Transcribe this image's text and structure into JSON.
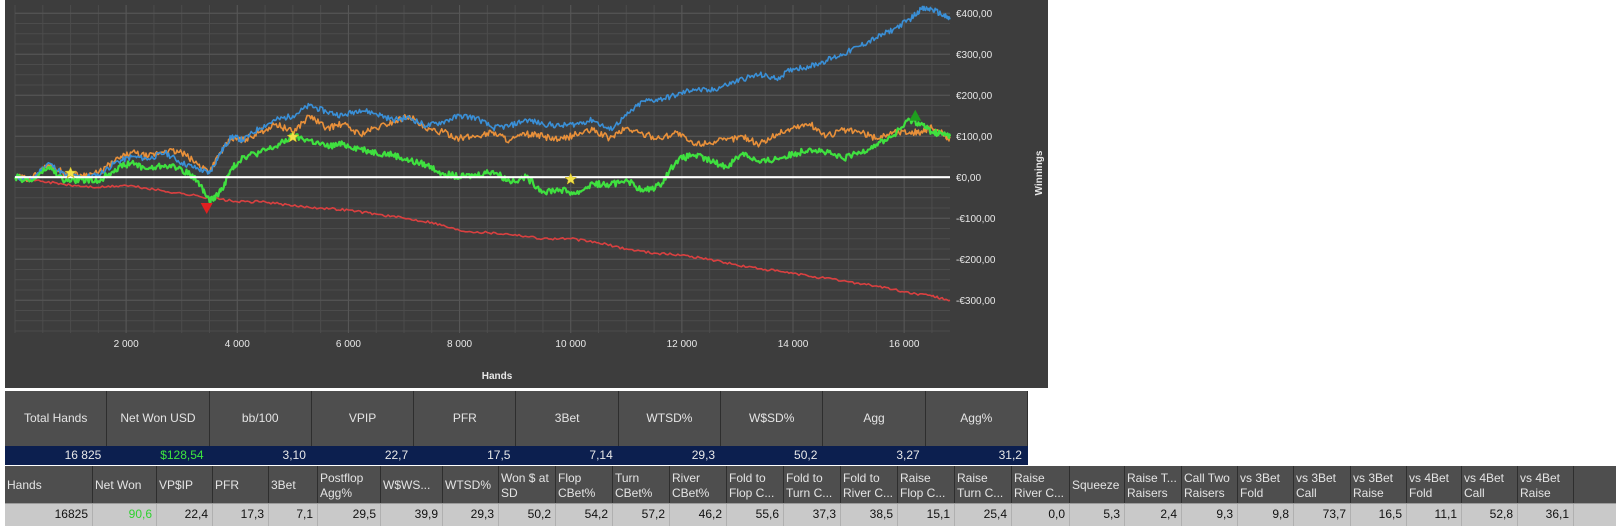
{
  "colors": {
    "blue": "#3a8fd6",
    "orange": "#e8903a",
    "green": "#3fe03f",
    "red": "#d94040",
    "zero_line": "#ffffff",
    "chart_bg": "#3d3d3d",
    "summary_value_bg": "#0c1f4f"
  },
  "chart_data": {
    "type": "line",
    "xlabel": "Hands",
    "ylabel": "Winnings",
    "x_ticks": [
      2000,
      4000,
      6000,
      8000,
      10000,
      12000,
      14000,
      16000
    ],
    "x_tick_labels": [
      "2 000",
      "4 000",
      "6 000",
      "8 000",
      "10 000",
      "12 000",
      "14 000",
      "16 000"
    ],
    "y_ticks": [
      -300,
      -200,
      -100,
      0,
      100,
      200,
      300,
      400
    ],
    "y_tick_labels": [
      "-€300,00",
      "-€200,00",
      "-€100,00",
      "€0,00",
      "€100,00",
      "€200,00",
      "€300,00",
      "€400,00"
    ],
    "xlim": [
      0,
      16825
    ],
    "ylim": [
      -380,
      420
    ],
    "grid": true,
    "series": [
      {
        "color_key": "blue",
        "x": [
          0,
          300,
          600,
          900,
          1200,
          1500,
          1800,
          2100,
          2400,
          2700,
          3000,
          3300,
          3500,
          3700,
          3900,
          4100,
          4400,
          4700,
          5000,
          5300,
          5600,
          5900,
          6200,
          6500,
          6800,
          7100,
          7400,
          7700,
          8000,
          8300,
          8600,
          8900,
          9200,
          9500,
          9800,
          10100,
          10400,
          10700,
          11000,
          11300,
          11600,
          11900,
          12200,
          12500,
          12800,
          13100,
          13400,
          13700,
          14000,
          14300,
          14600,
          14900,
          15200,
          15500,
          15800,
          16100,
          16300,
          16500,
          16700,
          16825
        ],
        "values": [
          0,
          -5,
          35,
          5,
          0,
          5,
          35,
          50,
          45,
          60,
          35,
          20,
          10,
          60,
          100,
          90,
          120,
          140,
          150,
          175,
          160,
          150,
          165,
          155,
          140,
          145,
          125,
          135,
          150,
          145,
          120,
          125,
          140,
          130,
          125,
          130,
          140,
          115,
          150,
          185,
          190,
          200,
          215,
          210,
          225,
          240,
          250,
          240,
          265,
          270,
          285,
          300,
          320,
          340,
          360,
          385,
          410,
          410,
          395,
          385
        ]
      },
      {
        "color_key": "orange",
        "x": [
          0,
          300,
          600,
          900,
          1200,
          1500,
          1800,
          2100,
          2400,
          2700,
          3000,
          3300,
          3500,
          3700,
          3900,
          4100,
          4400,
          4700,
          5000,
          5300,
          5600,
          5900,
          6200,
          6500,
          6800,
          7100,
          7400,
          7700,
          8000,
          8300,
          8600,
          8900,
          9200,
          9500,
          9800,
          10100,
          10400,
          10700,
          11000,
          11300,
          11600,
          11900,
          12200,
          12500,
          12800,
          13100,
          13400,
          13700,
          14000,
          14300,
          14600,
          14900,
          15200,
          15500,
          15800,
          16100,
          16300,
          16500,
          16700,
          16825
        ],
        "values": [
          0,
          -3,
          30,
          10,
          5,
          10,
          40,
          60,
          50,
          65,
          60,
          30,
          15,
          60,
          95,
          90,
          110,
          130,
          110,
          150,
          120,
          130,
          105,
          120,
          135,
          150,
          115,
          110,
          95,
          100,
          110,
          90,
          105,
          100,
          90,
          105,
          115,
          95,
          120,
          105,
          95,
          110,
          80,
          85,
          90,
          100,
          80,
          105,
          120,
          130,
          100,
          115,
          110,
          95,
          110,
          110,
          110,
          120,
          105,
          95
        ]
      },
      {
        "color_key": "green",
        "x": [
          0,
          300,
          600,
          900,
          1200,
          1500,
          1800,
          2100,
          2400,
          2700,
          3000,
          3300,
          3500,
          3700,
          3900,
          4100,
          4400,
          4700,
          5000,
          5300,
          5600,
          5900,
          6200,
          6500,
          6800,
          7100,
          7400,
          7700,
          8000,
          8300,
          8600,
          8900,
          9200,
          9500,
          9800,
          10100,
          10400,
          10700,
          11000,
          11300,
          11600,
          11900,
          12200,
          12500,
          12800,
          13100,
          13400,
          13700,
          14000,
          14300,
          14600,
          14900,
          15200,
          15500,
          15800,
          16100,
          16300,
          16500,
          16700,
          16825
        ],
        "values": [
          0,
          -10,
          25,
          -10,
          -5,
          -10,
          20,
          35,
          20,
          30,
          20,
          -10,
          -60,
          -35,
          20,
          50,
          60,
          75,
          100,
          90,
          75,
          80,
          70,
          60,
          55,
          40,
          30,
          10,
          0,
          5,
          15,
          -10,
          0,
          -35,
          -30,
          -40,
          -15,
          -20,
          -5,
          -35,
          -20,
          40,
          55,
          40,
          25,
          60,
          35,
          45,
          55,
          70,
          60,
          45,
          60,
          80,
          100,
          140,
          130,
          110,
          105,
          100
        ]
      },
      {
        "color_key": "red",
        "x": [
          0,
          500,
          1000,
          1500,
          2000,
          2500,
          3000,
          3500,
          4000,
          4500,
          5000,
          5500,
          6000,
          6500,
          7000,
          7500,
          8000,
          8500,
          9000,
          9500,
          10000,
          10500,
          11000,
          11500,
          12000,
          12500,
          13000,
          13500,
          14000,
          14500,
          15000,
          15500,
          16000,
          16500,
          16825
        ],
        "values": [
          0,
          -10,
          -20,
          -25,
          -20,
          -30,
          -40,
          -50,
          -60,
          -60,
          -70,
          -75,
          -80,
          -90,
          -100,
          -110,
          -130,
          -135,
          -140,
          -150,
          -150,
          -160,
          -175,
          -185,
          -190,
          -200,
          -215,
          -225,
          -235,
          -245,
          -255,
          -265,
          -280,
          -290,
          -300
        ]
      }
    ],
    "markers": [
      {
        "type": "star",
        "x": 1000,
        "y": 10,
        "color": "#f2e24a"
      },
      {
        "type": "star",
        "x": 5000,
        "y": 98,
        "color": "#f2e24a"
      },
      {
        "type": "star",
        "x": 10000,
        "y": -5,
        "color": "#f2e24a"
      },
      {
        "type": "triangle-down",
        "x": 3450,
        "y": -75,
        "color": "#e02020"
      },
      {
        "type": "triangle-up",
        "x": 16200,
        "y": 150,
        "color": "#1e9e1e"
      }
    ]
  },
  "summary": {
    "headers": [
      "Total Hands",
      "Net Won USD",
      "bb/100",
      "VPIP",
      "PFR",
      "3Bet",
      "WTSD%",
      "W$SD%",
      "Agg",
      "Agg%"
    ],
    "values": [
      "16 825",
      "$128,54",
      "3,10",
      "22,7",
      "17,5",
      "7,14",
      "29,3",
      "50,2",
      "3,27",
      "31,2"
    ]
  },
  "stats": {
    "headers": [
      "Hands",
      "Net Won",
      "VP$IP",
      "PFR",
      "3Bet",
      "Postflop Agg%",
      "W$WS...",
      "WTSD%",
      "Won $ at SD",
      "Flop CBet%",
      "Turn CBet%",
      "River CBet%",
      "Fold to Flop C...",
      "Fold to Turn C...",
      "Fold to River C...",
      "Raise Flop C...",
      "Raise Turn C...",
      "Raise River C...",
      "Squeeze",
      "Raise T... Raisers",
      "Call Two Raisers",
      "vs 3Bet Fold",
      "vs 3Bet Call",
      "vs 3Bet Raise",
      "vs 4Bet Fold",
      "vs 4Bet Call",
      "vs 4Bet Raise"
    ],
    "values": [
      "16825",
      "90,6",
      "22,4",
      "17,3",
      "7,1",
      "29,5",
      "39,9",
      "29,3",
      "50,2",
      "54,2",
      "57,2",
      "46,2",
      "55,6",
      "37,3",
      "38,5",
      "15,1",
      "25,4",
      "0,0",
      "5,3",
      "2,4",
      "9,3",
      "9,8",
      "73,7",
      "16,5",
      "11,1",
      "52,8",
      "36,1"
    ]
  }
}
